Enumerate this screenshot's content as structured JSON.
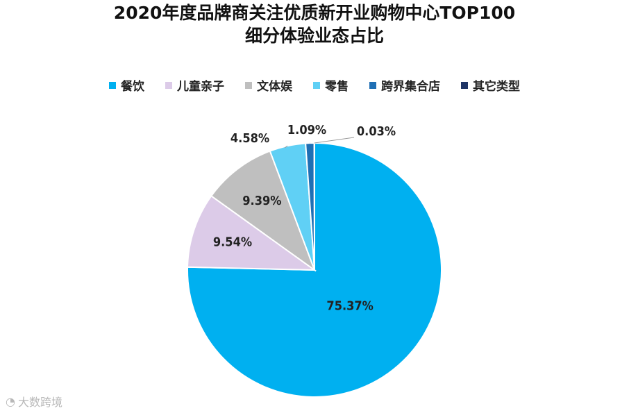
{
  "title_line1": "2020年度品牌商关注优质新开业购物中心TOP100",
  "title_line2": "细分体验业态占比",
  "watermark": "大数跨境",
  "chart_data": {
    "type": "pie",
    "title": "2020年度品牌商关注优质新开业购物中心TOP100 细分体验业态占比",
    "legend_position": "top",
    "slices": [
      {
        "label": "餐饮",
        "value": 75.37,
        "value_label": "75.37%",
        "color": "#00b0f0"
      },
      {
        "label": "儿童亲子",
        "value": 9.54,
        "value_label": "9.54%",
        "color": "#dccbe8"
      },
      {
        "label": "文体娱",
        "value": 9.39,
        "value_label": "9.39%",
        "color": "#bfbfbf"
      },
      {
        "label": "零售",
        "value": 4.58,
        "value_label": "4.58%",
        "color": "#60d0f5"
      },
      {
        "label": "跨界集合店",
        "value": 1.09,
        "value_label": "1.09%",
        "color": "#1f6fb4"
      },
      {
        "label": "其它类型",
        "value": 0.03,
        "value_label": "0.03%",
        "color": "#1f3566"
      }
    ]
  }
}
